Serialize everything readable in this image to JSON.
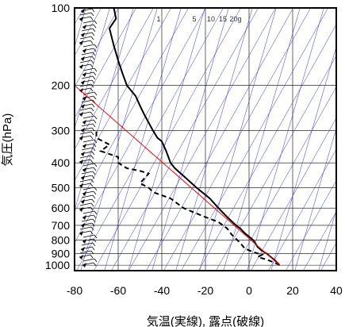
{
  "chart_data": {
    "type": "line",
    "xlabel": "気温(実線), 露点(破線)",
    "ylabel": "気圧(hPa)",
    "x_ticks": [
      -80,
      -60,
      -40,
      -20,
      0,
      20,
      40
    ],
    "y_ticks": [
      100,
      200,
      300,
      400,
      500,
      600,
      700,
      800,
      900,
      1000
    ],
    "xlim": [
      -80,
      40
    ],
    "ylim": [
      1050,
      100
    ],
    "y_scale": "log",
    "grid": true,
    "mixing_ratio_labels": [
      "1",
      "5",
      "10",
      "15",
      "20g"
    ],
    "colors": {
      "temperature": "#000000",
      "dewpoint": "#000000",
      "adiabats": "#3333dd",
      "reference": "#ff0000",
      "grid": "#000000"
    },
    "series": [
      {
        "line": "solid",
        "points": [
          [
            14,
            1000
          ],
          [
            12,
            960
          ],
          [
            10,
            930
          ],
          [
            8,
            900
          ],
          [
            6,
            880
          ],
          [
            4,
            850
          ],
          [
            2,
            800
          ],
          [
            -2,
            750
          ],
          [
            -4,
            720
          ],
          [
            -6,
            700
          ],
          [
            -10,
            650
          ],
          [
            -14,
            600
          ],
          [
            -18,
            550
          ],
          [
            -24,
            500
          ],
          [
            -30,
            450
          ],
          [
            -34,
            420
          ],
          [
            -36,
            400
          ],
          [
            -38,
            360
          ],
          [
            -40,
            330
          ],
          [
            -42,
            320
          ],
          [
            -44,
            300
          ],
          [
            -48,
            260
          ],
          [
            -50,
            240
          ],
          [
            -52,
            220
          ],
          [
            -56,
            200
          ],
          [
            -58,
            180
          ],
          [
            -60,
            160
          ],
          [
            -62,
            140
          ],
          [
            -64,
            120
          ],
          [
            -61,
            110
          ],
          [
            -62,
            100
          ]
        ]
      },
      {
        "line": "dashed",
        "points": [
          [
            14,
            1000
          ],
          [
            12,
            980
          ],
          [
            8,
            950
          ],
          [
            4,
            930
          ],
          [
            6,
            910
          ],
          [
            2,
            890
          ],
          [
            -2,
            860
          ],
          [
            -4,
            820
          ],
          [
            -8,
            760
          ],
          [
            -10,
            720
          ],
          [
            -14,
            680
          ],
          [
            -20,
            650
          ],
          [
            -26,
            620
          ],
          [
            -30,
            600
          ],
          [
            -36,
            550
          ],
          [
            -44,
            520
          ],
          [
            -46,
            500
          ],
          [
            -50,
            480
          ],
          [
            -48,
            460
          ],
          [
            -46,
            440
          ],
          [
            -50,
            430
          ],
          [
            -56,
            420
          ],
          [
            -60,
            400
          ],
          [
            -60,
            380
          ],
          [
            -68,
            360
          ],
          [
            -64,
            340
          ],
          [
            -70,
            320
          ],
          [
            -70,
            300
          ]
        ]
      },
      {
        "line": "reference",
        "points": [
          [
            14,
            1000
          ],
          [
            -80,
            200
          ]
        ]
      }
    ]
  }
}
